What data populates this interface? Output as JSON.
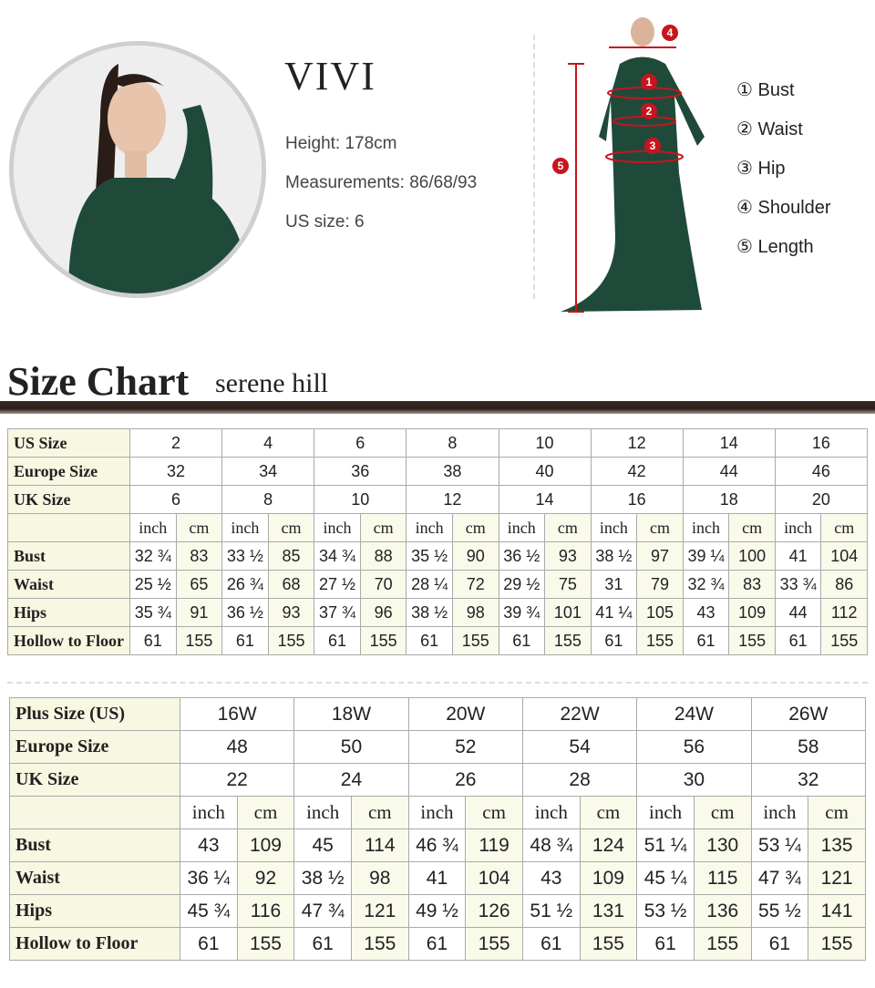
{
  "model": {
    "name": "VIVI",
    "height_label": "Height:",
    "height": "178cm",
    "measurements_label": "Measurements:",
    "measurements": "86/68/93",
    "us_size_label": "US size:",
    "us_size": "6"
  },
  "legend": [
    {
      "num": "①",
      "label": "Bust"
    },
    {
      "num": "②",
      "label": "Waist"
    },
    {
      "num": "③",
      "label": "Hip"
    },
    {
      "num": "④",
      "label": "Shoulder"
    },
    {
      "num": "⑤",
      "label": "Length"
    }
  ],
  "diagram_markers": [
    "1",
    "2",
    "3",
    "4",
    "5"
  ],
  "colors": {
    "dress": "#1f4a3a",
    "marker": "#c8141e",
    "label_bg": "#f8f7e2"
  },
  "title": "Size Chart",
  "subtitle": "serene hill",
  "table1": {
    "rows_header": [
      {
        "label": "US Size",
        "values": [
          "2",
          "4",
          "6",
          "8",
          "10",
          "12",
          "14",
          "16"
        ]
      },
      {
        "label": "Europe Size",
        "values": [
          "32",
          "34",
          "36",
          "38",
          "40",
          "42",
          "44",
          "46"
        ]
      },
      {
        "label": "UK Size",
        "values": [
          "6",
          "8",
          "10",
          "12",
          "14",
          "16",
          "18",
          "20"
        ]
      }
    ],
    "units": [
      "inch",
      "cm"
    ],
    "rows": [
      {
        "label": "Bust",
        "values": [
          "32 ¾",
          "83",
          "33 ½",
          "85",
          "34 ¾",
          "88",
          "35 ½",
          "90",
          "36 ½",
          "93",
          "38 ½",
          "97",
          "39 ¼",
          "100",
          "41",
          "104"
        ]
      },
      {
        "label": "Waist",
        "values": [
          "25 ½",
          "65",
          "26 ¾",
          "68",
          "27 ½",
          "70",
          "28 ¼",
          "72",
          "29 ½",
          "75",
          "31",
          "79",
          "32 ¾",
          "83",
          "33 ¾",
          "86"
        ]
      },
      {
        "label": "Hips",
        "values": [
          "35 ¾",
          "91",
          "36 ½",
          "93",
          "37 ¾",
          "96",
          "38 ½",
          "98",
          "39 ¾",
          "101",
          "41 ¼",
          "105",
          "43",
          "109",
          "44",
          "112"
        ]
      },
      {
        "label": "Hollow to Floor",
        "values": [
          "61",
          "155",
          "61",
          "155",
          "61",
          "155",
          "61",
          "155",
          "61",
          "155",
          "61",
          "155",
          "61",
          "155",
          "61",
          "155"
        ]
      }
    ]
  },
  "table2": {
    "rows_header": [
      {
        "label": "Plus Size (US)",
        "values": [
          "16W",
          "18W",
          "20W",
          "22W",
          "24W",
          "26W"
        ]
      },
      {
        "label": "Europe Size",
        "values": [
          "48",
          "50",
          "52",
          "54",
          "56",
          "58"
        ]
      },
      {
        "label": "UK Size",
        "values": [
          "22",
          "24",
          "26",
          "28",
          "30",
          "32"
        ]
      }
    ],
    "units": [
      "inch",
      "cm"
    ],
    "rows": [
      {
        "label": "Bust",
        "values": [
          "43",
          "109",
          "45",
          "114",
          "46 ¾",
          "119",
          "48 ¾",
          "124",
          "51 ¼",
          "130",
          "53 ¼",
          "135"
        ]
      },
      {
        "label": "Waist",
        "values": [
          "36 ¼",
          "92",
          "38 ½",
          "98",
          "41",
          "104",
          "43",
          "109",
          "45 ¼",
          "115",
          "47 ¾",
          "121"
        ]
      },
      {
        "label": "Hips",
        "values": [
          "45 ¾",
          "116",
          "47 ¾",
          "121",
          "49 ½",
          "126",
          "51 ½",
          "131",
          "53 ½",
          "136",
          "55 ½",
          "141"
        ]
      },
      {
        "label": "Hollow to Floor",
        "values": [
          "61",
          "155",
          "61",
          "155",
          "61",
          "155",
          "61",
          "155",
          "61",
          "155",
          "61",
          "155"
        ]
      }
    ]
  }
}
